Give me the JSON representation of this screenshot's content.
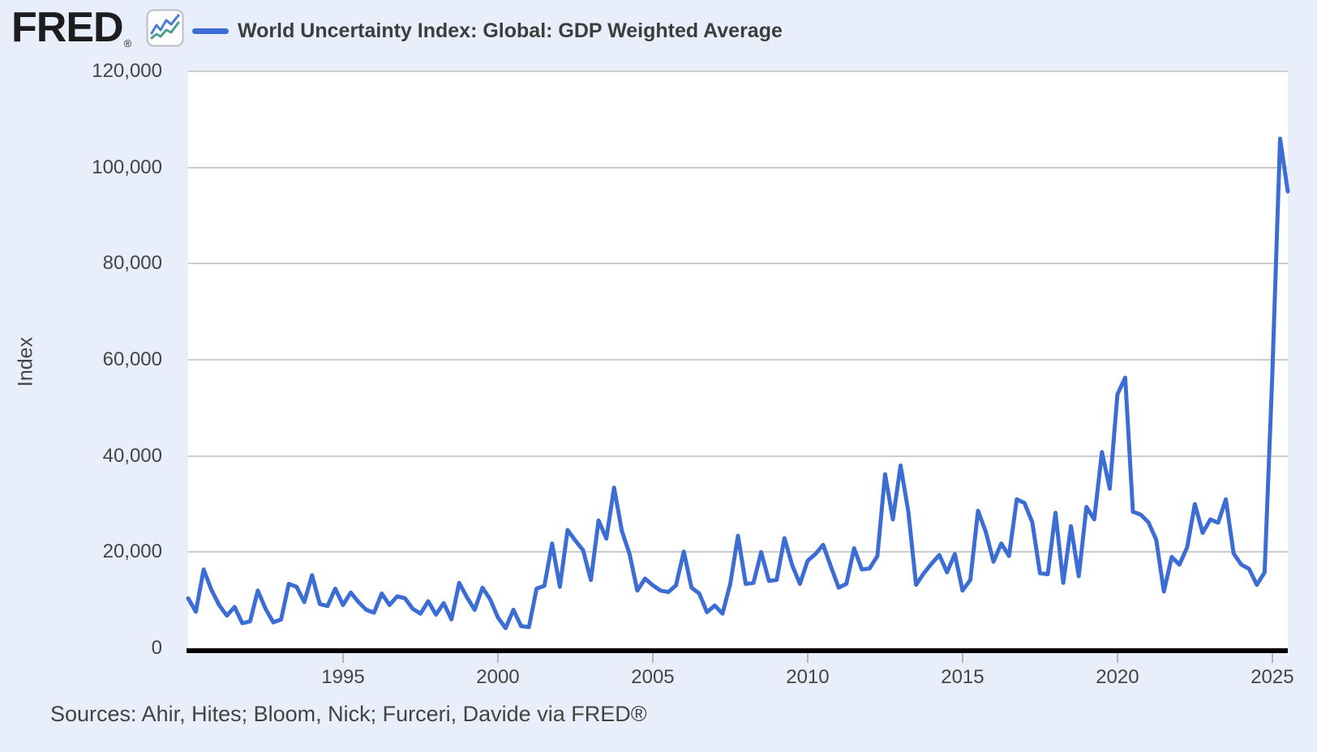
{
  "header": {
    "logo_text": "FRED",
    "logo_registered": "®",
    "chart_icon": "line-chart-icon"
  },
  "legend": {
    "series_label": "World Uncertainty Index: Global: GDP Weighted Average"
  },
  "y_axis": {
    "title": "Index",
    "tick_labels": [
      "0",
      "20,000",
      "40,000",
      "60,000",
      "80,000",
      "100,000",
      "120,000"
    ],
    "tick_values": [
      0,
      20000,
      40000,
      60000,
      80000,
      100000,
      120000
    ]
  },
  "x_axis": {
    "tick_labels": [
      "1995",
      "2000",
      "2005",
      "2010",
      "2015",
      "2020",
      "2025"
    ],
    "tick_values": [
      1995,
      2000,
      2005,
      2010,
      2015,
      2020,
      2025
    ]
  },
  "footer": {
    "sources": "Sources: Ahir, Hites; Bloom, Nick; Furceri, Davide via FRED®"
  },
  "colors": {
    "line": "#3c6dd5",
    "background": "#e9effa",
    "plot_background": "#ffffff",
    "gridline": "#cccccc",
    "axis": "#000000",
    "text": "#444444",
    "icon_blue": "#4a7bd5",
    "icon_teal": "#4e9e8e"
  },
  "chart_data": {
    "type": "line",
    "title": "World Uncertainty Index: Global: GDP Weighted Average",
    "ylabel": "Index",
    "frequency": "quarterly",
    "x_start": 1990.0,
    "x_step": 0.25,
    "x_end": 2025.5,
    "ylim": [
      0,
      120000
    ],
    "grid": true,
    "legend_position": "top-left",
    "values": [
      10400,
      7600,
      16400,
      12200,
      9000,
      6800,
      8600,
      5200,
      5600,
      12000,
      8200,
      5400,
      6000,
      13400,
      12800,
      9600,
      15200,
      9200,
      8800,
      12400,
      9000,
      11600,
      9600,
      8000,
      7400,
      11400,
      9000,
      10800,
      10400,
      8200,
      7200,
      9800,
      7000,
      9400,
      6000,
      13600,
      10600,
      8000,
      12600,
      10200,
      6400,
      4200,
      8000,
      4600,
      4400,
      12400,
      13000,
      21800,
      12800,
      24600,
      22400,
      20400,
      14200,
      26600,
      22800,
      33400,
      24400,
      19600,
      12000,
      14500,
      13100,
      12000,
      11700,
      13100,
      20100,
      12600,
      11400,
      7500,
      8900,
      7200,
      13400,
      23400,
      13400,
      13600,
      20000,
      14000,
      14200,
      22900,
      17300,
      13400,
      18200,
      19600,
      21500,
      17000,
      12600,
      13400,
      20800,
      16400,
      16600,
      19200,
      36200,
      26800,
      38000,
      28400,
      13200,
      15600,
      17600,
      19400,
      15800,
      19600,
      12000,
      14200,
      28600,
      24200,
      18000,
      21800,
      19200,
      31000,
      30200,
      26200,
      15600,
      15400,
      28200,
      13600,
      25400,
      15000,
      29400,
      26800,
      40800,
      33200,
      52800,
      56300,
      28400,
      27800,
      26200,
      22600,
      11800,
      19000,
      17400,
      21000,
      30000,
      24000,
      26800,
      26100,
      31000,
      19700,
      17400,
      16500,
      13200,
      15800,
      57000,
      106000,
      95000
    ]
  }
}
